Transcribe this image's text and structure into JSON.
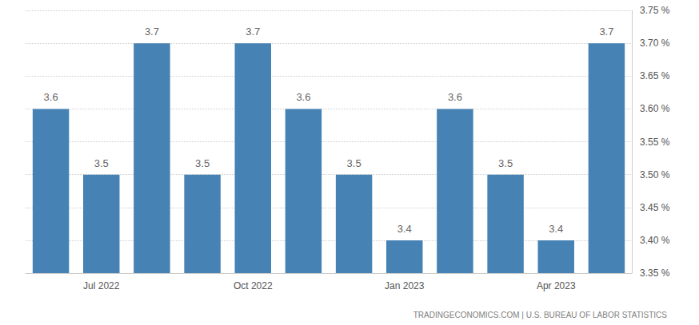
{
  "chart_data": {
    "type": "bar",
    "categories": [
      null,
      "Jul 2022",
      null,
      null,
      "Oct 2022",
      null,
      null,
      "Jan 2023",
      null,
      null,
      "Apr 2023",
      null
    ],
    "values": [
      3.6,
      3.5,
      3.7,
      3.5,
      3.7,
      3.6,
      3.5,
      3.4,
      3.6,
      3.5,
      3.4,
      3.7
    ],
    "color": "#4682b4",
    "ylim": [
      3.35,
      3.75
    ],
    "yticks": [
      {
        "value": 3.35,
        "label": "3.35 %"
      },
      {
        "value": 3.4,
        "label": "3.40 %"
      },
      {
        "value": 3.45,
        "label": "3.45 %"
      },
      {
        "value": 3.5,
        "label": "3.50 %"
      },
      {
        "value": 3.55,
        "label": "3.55 %"
      },
      {
        "value": 3.6,
        "label": "3.60 %"
      },
      {
        "value": 3.65,
        "label": "3.65 %"
      },
      {
        "value": 3.7,
        "label": "3.70 %"
      },
      {
        "value": 3.75,
        "label": "3.75 %"
      }
    ],
    "grid": true,
    "data_labels": true,
    "annotation": "TRADINGECONOMICS.COM | U.S. BUREAU OF LABOR STATISTICS"
  }
}
